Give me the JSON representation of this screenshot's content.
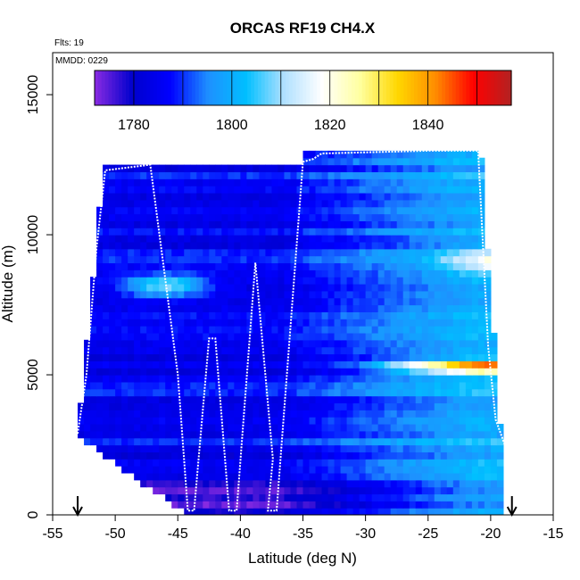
{
  "chart_data": {
    "type": "heatmap",
    "title": "ORCAS RF19 CH4.X",
    "annotations": {
      "flights": "Flts: 19",
      "mmdd": "MMDD: 0229"
    },
    "xlabel": "Latitude (deg N)",
    "ylabel": "Altitude (m)",
    "xlim": [
      -55,
      -15
    ],
    "ylim": [
      0,
      16500
    ],
    "xticks": [
      -55,
      -50,
      -45,
      -40,
      -35,
      -30,
      -25,
      -20,
      -15
    ],
    "yticks": [
      0,
      5000,
      10000,
      15000
    ],
    "colorbar": {
      "range": [
        1772,
        1857
      ],
      "ticks": [
        1780,
        1800,
        1820,
        1840
      ],
      "colors": [
        "#8a2be2",
        "#0000cd",
        "#0000ff",
        "#1e90ff",
        "#00bfff",
        "#b0e0ff",
        "#ffffff",
        "#ffffa0",
        "#ffd700",
        "#ff8c00",
        "#ff0000",
        "#b22222"
      ]
    },
    "arrows_at_lat": [
      -53,
      -18.3
    ],
    "flight_track": [
      [
        -53,
        2900
      ],
      [
        -52.3,
        5000
      ],
      [
        -51.5,
        9500
      ],
      [
        -50.8,
        12300
      ],
      [
        -47.2,
        12500
      ],
      [
        -45,
        5000
      ],
      [
        -44.2,
        150
      ],
      [
        -43.7,
        150
      ],
      [
        -42.5,
        6300
      ],
      [
        -42.0,
        6300
      ],
      [
        -40.9,
        150
      ],
      [
        -40.3,
        150
      ],
      [
        -38.8,
        9000
      ],
      [
        -37.4,
        2000
      ],
      [
        -37.8,
        150
      ],
      [
        -37.1,
        150
      ],
      [
        -35,
        12600
      ],
      [
        -34.2,
        12700
      ],
      [
        -33.5,
        12900
      ],
      [
        -25,
        13000
      ],
      [
        -21.0,
        13000
      ],
      [
        -20.2,
        6000
      ],
      [
        -19.6,
        3400
      ],
      [
        -18.3,
        1800
      ]
    ],
    "features": [
      {
        "type": "high-CH4 layer",
        "lat_range": [
          -31,
          -20
        ],
        "alt_m": 5300,
        "max_value": 1850
      },
      {
        "type": "elevated layer",
        "lat_range": [
          -26,
          -19.5
        ],
        "alt_m": 9000,
        "max_value": 1828
      },
      {
        "type": "light band",
        "lat_range": [
          -51,
          -43
        ],
        "alt_m": 8200,
        "max_value": 1813
      },
      {
        "type": "low CH4 surface",
        "lat_range": [
          -50,
          -36
        ],
        "alt_m": 500,
        "min_value": 1773
      }
    ]
  }
}
